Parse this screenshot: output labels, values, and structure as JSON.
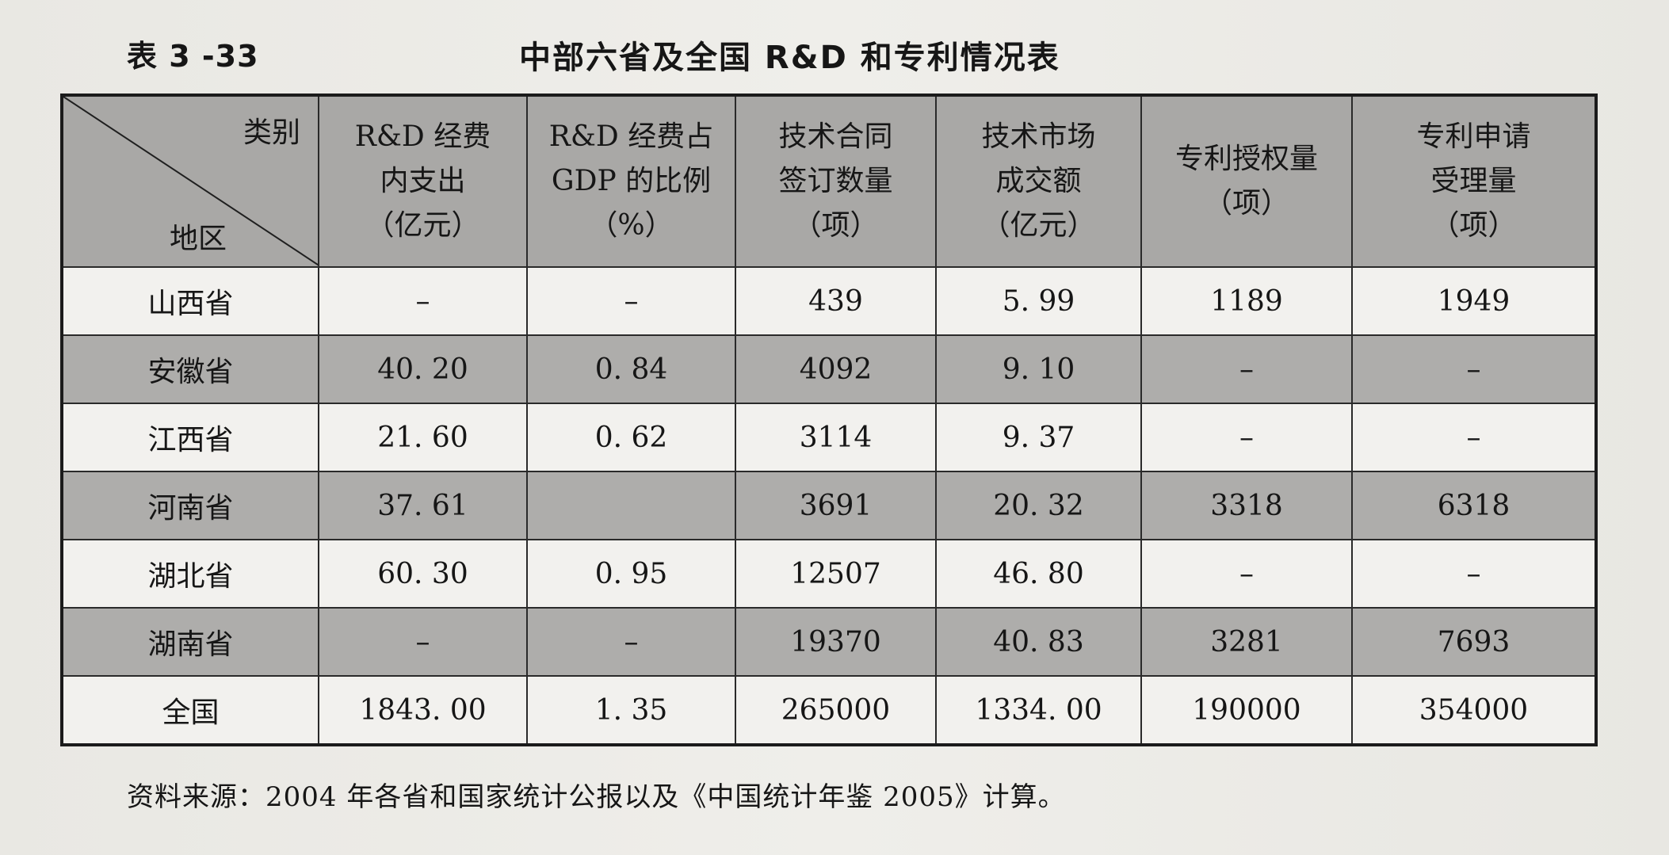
{
  "table_label": "表 3 -33",
  "title": "中部六省及全国 R&D 和专利情况表",
  "corner": {
    "top": "类别",
    "bottom": "地区"
  },
  "columns": [
    [
      "R&D 经费",
      "内支出",
      "（亿元）"
    ],
    [
      "R&D 经费占",
      "GDP 的比例",
      "（%）"
    ],
    [
      "技术合同",
      "签订数量",
      "（项）"
    ],
    [
      "技术市场",
      "成交额",
      "（亿元）"
    ],
    [
      "专利授权量",
      "（项）"
    ],
    [
      "专利申请",
      "受理量",
      "（项）"
    ]
  ],
  "rows": [
    {
      "region": "山西省",
      "cells": [
        "–",
        "–",
        "439",
        "5. 99",
        "1189",
        "1949"
      ]
    },
    {
      "region": "安徽省",
      "cells": [
        "40. 20",
        "0. 84",
        "4092",
        "9. 10",
        "–",
        "–"
      ]
    },
    {
      "region": "江西省",
      "cells": [
        "21. 60",
        "0. 62",
        "3114",
        "9. 37",
        "–",
        "–"
      ]
    },
    {
      "region": "河南省",
      "cells": [
        "37. 61",
        "",
        "3691",
        "20. 32",
        "3318",
        "6318"
      ]
    },
    {
      "region": "湖北省",
      "cells": [
        "60. 30",
        "0. 95",
        "12507",
        "46. 80",
        "–",
        "–"
      ]
    },
    {
      "region": "湖南省",
      "cells": [
        "–",
        "–",
        "19370",
        "40. 83",
        "3281",
        "7693"
      ]
    },
    {
      "region": "全国",
      "cells": [
        "1843. 00",
        "1. 35",
        "265000",
        "1334. 00",
        "190000",
        "354000"
      ]
    }
  ],
  "footnote": "资料来源：2004 年各省和国家统计公报以及《中国统计年鉴 2005》计算。"
}
